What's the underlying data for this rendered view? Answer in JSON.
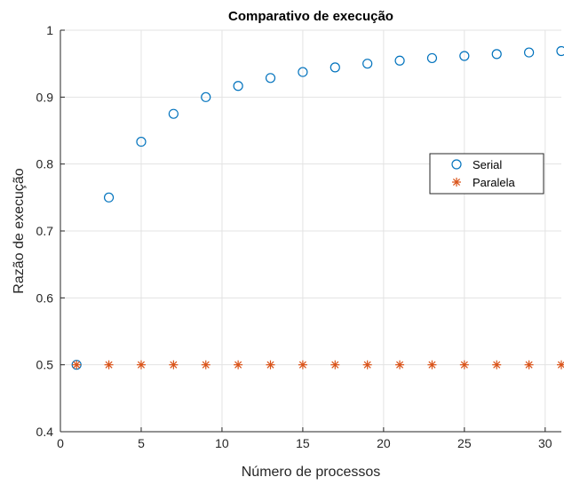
{
  "chart_data": {
    "type": "scatter",
    "title": "Comparativo de execução",
    "xlabel": "Número de processos",
    "ylabel": "Razão de execução",
    "xlim": [
      0,
      31
    ],
    "ylim": [
      0.4,
      1
    ],
    "xticks": [
      "0",
      "5",
      "10",
      "15",
      "20",
      "25",
      "30"
    ],
    "yticks": [
      "0.4",
      "0.5",
      "0.6",
      "0.7",
      "0.8",
      "0.9",
      "1"
    ],
    "grid": true,
    "legend_position": "right",
    "x": [
      1,
      3,
      5,
      7,
      9,
      11,
      13,
      15,
      17,
      19,
      21,
      23,
      25,
      27,
      29,
      31
    ],
    "series": [
      {
        "name": "Serial",
        "marker": "circle",
        "color": "#0072BD",
        "values": [
          0.5,
          0.75,
          0.8333,
          0.875,
          0.9,
          0.9167,
          0.9286,
          0.9375,
          0.9444,
          0.95,
          0.9545,
          0.9583,
          0.9615,
          0.9643,
          0.9667,
          0.9688
        ]
      },
      {
        "name": "Paralela",
        "marker": "asterisk",
        "color": "#D95319",
        "values": [
          0.5,
          0.5,
          0.5,
          0.5,
          0.5,
          0.5,
          0.5,
          0.5,
          0.5,
          0.5,
          0.5,
          0.5,
          0.5,
          0.5,
          0.5,
          0.5
        ]
      }
    ]
  }
}
